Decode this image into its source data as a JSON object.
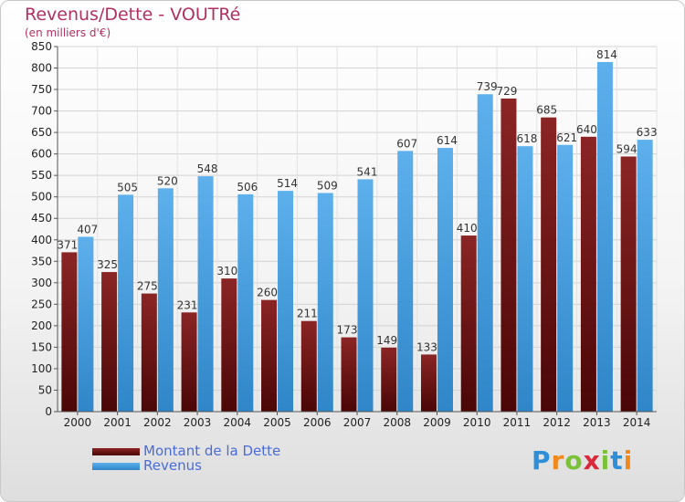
{
  "header": {
    "title": "Revenus/Dette - VOUTRé",
    "subtitle": "(en milliers d'€)"
  },
  "chart_data": {
    "type": "bar",
    "categories": [
      "2000",
      "2001",
      "2002",
      "2003",
      "2004",
      "2005",
      "2006",
      "2007",
      "2008",
      "2009",
      "2010",
      "2011",
      "2012",
      "2013",
      "2014"
    ],
    "series": [
      {
        "name": "Montant de la Dette",
        "color": "#7a1a1a",
        "values": [
          371,
          325,
          275,
          231,
          310,
          260,
          211,
          173,
          149,
          133,
          410,
          729,
          685,
          640,
          594
        ],
        "labels": [
          "371",
          "325",
          "275",
          "231",
          "310",
          "260",
          "211",
          "173",
          "149",
          "133",
          "410",
          "729",
          "685",
          "640",
          "594"
        ]
      },
      {
        "name": "Revenus",
        "color": "#4aa3e3",
        "values": [
          407,
          505,
          520,
          548,
          506,
          514,
          509,
          541,
          607,
          614,
          739,
          618,
          621,
          814,
          633
        ],
        "labels": [
          "407",
          "505",
          "520",
          "548",
          "506",
          "514",
          "509",
          "541",
          "607",
          "614",
          "739",
          "618",
          "621",
          "814",
          "633"
        ]
      }
    ],
    "ylim": [
      0,
      850
    ],
    "yticks": [
      0,
      50,
      100,
      150,
      200,
      250,
      300,
      350,
      400,
      450,
      500,
      550,
      600,
      650,
      700,
      750,
      800,
      850
    ],
    "grid": true,
    "legend_position": "bottom-left"
  },
  "legend": {
    "debt_label": "Montant de la Dette",
    "revenue_label": "Revenus"
  },
  "logo": {
    "text": "Proxiti"
  }
}
